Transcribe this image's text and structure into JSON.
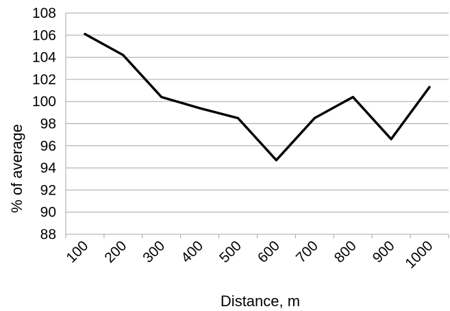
{
  "chart_data": {
    "type": "line",
    "categories": [
      "100",
      "200",
      "300",
      "400",
      "500",
      "600",
      "700",
      "800",
      "900",
      "1000"
    ],
    "series": [
      {
        "values": [
          106.1,
          104.2,
          100.4,
          99.4,
          98.5,
          94.7,
          98.5,
          100.4,
          96.6,
          101.3
        ]
      }
    ],
    "xlabel": "Distance, m",
    "ylabel": "% of average",
    "ylim": [
      88,
      108
    ],
    "yticks": [
      "88",
      "90",
      "92",
      "94",
      "96",
      "98",
      "100",
      "102",
      "104",
      "106",
      "108"
    ],
    "grid": true,
    "legend": "none",
    "line_color": "#000000",
    "grid_color": "#a6a6a6"
  }
}
